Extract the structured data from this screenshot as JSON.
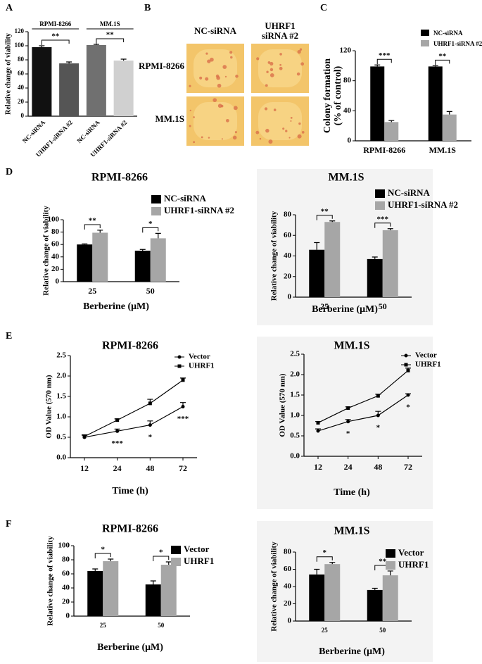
{
  "image_panel": {
    "panel": "B",
    "columns": [
      [
        "NC-siRNA"
      ],
      [
        "UHRF1",
        "siRNA #2"
      ]
    ],
    "rows": [
      "RPMI-8266",
      "MM.1S"
    ]
  },
  "chart_data": [
    {
      "type": "bar",
      "panel": "A",
      "ylabel": "Relative change of viability",
      "groups": [
        "RPMI-8266",
        "MM.1S"
      ],
      "categories": [
        "NC-siRNA",
        "UHRF1-siRNA #2",
        "NC-siRNA",
        "UHRF1-siRNA #2"
      ],
      "values": [
        98,
        75,
        101,
        79
      ],
      "errors": [
        2,
        2,
        1,
        2
      ],
      "colors": [
        "#111111",
        "#555555",
        "#707070",
        "#d0d0d0"
      ],
      "ylim": [
        0,
        120
      ],
      "yticks": [
        0,
        20,
        40,
        60,
        80,
        100,
        120
      ],
      "annotations": [
        "**",
        "**"
      ]
    },
    {
      "type": "bar",
      "panel": "C",
      "ylabel": [
        "Colony formation",
        "(% of control)"
      ],
      "categories": [
        "RPMI-8266",
        "MM.1S"
      ],
      "series": [
        {
          "name": "NC-siRNA",
          "color": "#000000",
          "values": [
            99,
            99
          ],
          "errors": [
            2,
            1
          ]
        },
        {
          "name": "UHRF1-siRNA #2",
          "color": "#a6a6a6",
          "values": [
            25,
            35
          ],
          "errors": [
            2,
            4
          ]
        }
      ],
      "ylim": [
        0,
        120
      ],
      "yticks": [
        0,
        40,
        80,
        120
      ],
      "annotations": [
        "***",
        "**"
      ]
    },
    {
      "type": "bar",
      "panel": "D",
      "title": "RPMI-8266",
      "ylabel": "Relative change of viability",
      "xlabel": "Berberine (μM)",
      "categories": [
        "25",
        "50"
      ],
      "series": [
        {
          "name": "NC-siRNA",
          "color": "#000000",
          "values": [
            60,
            50
          ],
          "errors": [
            1,
            2
          ]
        },
        {
          "name": "UHRF1-siRNA #2",
          "color": "#a6a6a6",
          "values": [
            79,
            70
          ],
          "errors": [
            4,
            8
          ]
        }
      ],
      "ylim": [
        0,
        100
      ],
      "yticks": [
        0,
        20,
        40,
        60,
        80,
        100
      ],
      "annotations": [
        "**",
        "*"
      ]
    },
    {
      "type": "bar",
      "title": "MM.1S",
      "ylabel": "Relative change of viability",
      "xlabel": "Berberine (μM)",
      "categories": [
        "25",
        "50"
      ],
      "series": [
        {
          "name": "NC-siRNA",
          "color": "#000000",
          "values": [
            46,
            37
          ],
          "errors": [
            7,
            2
          ]
        },
        {
          "name": "UHRF1-siRNA #2",
          "color": "#a6a6a6",
          "values": [
            73,
            65
          ],
          "errors": [
            1,
            1.5
          ]
        }
      ],
      "ylim": [
        0,
        80
      ],
      "yticks": [
        0,
        20,
        40,
        60,
        80
      ],
      "annotations": [
        "**",
        "***"
      ]
    },
    {
      "type": "line",
      "panel": "E",
      "title": "RPMI-8266",
      "ylabel": "OD Value (570 nm)",
      "xlabel": "Time (h)",
      "categories": [
        "12",
        "24",
        "48",
        "72"
      ],
      "series": [
        {
          "name": "Vector",
          "color": "#000000",
          "marker": "circle",
          "values": [
            0.5,
            0.65,
            0.8,
            1.25
          ],
          "errors": [
            0.05,
            0.05,
            0.1,
            0.1
          ]
        },
        {
          "name": "UHRF1",
          "color": "#000000",
          "marker": "square",
          "values": [
            0.52,
            0.92,
            1.33,
            1.9
          ],
          "errors": [
            0.04,
            0.03,
            0.1,
            0.05
          ]
        }
      ],
      "ylim": [
        0,
        2.5
      ],
      "yticks": [
        {
          "value": 0,
          "label": "0.0"
        },
        0.5,
        {
          "value": 1,
          "label": "1.0"
        },
        1.5,
        {
          "value": 2,
          "label": "2.0"
        },
        2.5
      ],
      "annotations": [
        null,
        "***",
        "*",
        "***"
      ]
    },
    {
      "type": "line",
      "title": "MM.1S",
      "ylabel": "OD Value (570 nm)",
      "xlabel": "Time (h)",
      "categories": [
        "12",
        "24",
        "48",
        "72"
      ],
      "series": [
        {
          "name": "Vector",
          "color": "#000000",
          "marker": "circle",
          "values": [
            0.62,
            0.85,
            1.0,
            1.5
          ],
          "errors": [
            0.05,
            0.05,
            0.1,
            0.03
          ]
        },
        {
          "name": "UHRF1",
          "color": "#000000",
          "marker": "square",
          "values": [
            0.82,
            1.18,
            1.48,
            2.1
          ],
          "errors": [
            0.03,
            0.03,
            0.04,
            0.06
          ]
        }
      ],
      "ylim": [
        0,
        2.5
      ],
      "yticks": [
        {
          "value": 0,
          "label": "0.0"
        },
        0.5,
        {
          "value": 1,
          "label": "1.0"
        },
        1.5,
        {
          "value": 2,
          "label": "2.0"
        },
        2.5
      ],
      "annotations": [
        null,
        "*",
        "*",
        "*"
      ]
    },
    {
      "type": "bar",
      "panel": "F",
      "title": "RPMI-8266",
      "ylabel": "Relative change of viability",
      "xlabel": "Berberine (μM)",
      "categories": [
        "25",
        "50"
      ],
      "series": [
        {
          "name": "Vector",
          "color": "#000000",
          "values": [
            64,
            45
          ],
          "errors": [
            3,
            5
          ]
        },
        {
          "name": "UHRF1",
          "color": "#a6a6a6",
          "values": [
            78,
            73
          ],
          "errors": [
            3,
            4
          ]
        }
      ],
      "ylim": [
        0,
        100
      ],
      "yticks": [
        0,
        20,
        40,
        60,
        80,
        100
      ],
      "annotations": [
        "*",
        "*"
      ]
    },
    {
      "type": "bar",
      "title": "MM.1S",
      "ylabel": "Relative change of viability",
      "xlabel": "Berberine (μM)",
      "categories": [
        "25",
        "50"
      ],
      "series": [
        {
          "name": "Vector",
          "color": "#000000",
          "values": [
            54,
            36
          ],
          "errors": [
            6,
            2
          ]
        },
        {
          "name": "UHRF1",
          "color": "#a6a6a6",
          "values": [
            66,
            53
          ],
          "errors": [
            2,
            5
          ]
        }
      ],
      "ylim": [
        0,
        80
      ],
      "yticks": [
        0,
        20,
        40,
        60,
        80
      ],
      "annotations": [
        "*",
        "**"
      ]
    }
  ]
}
